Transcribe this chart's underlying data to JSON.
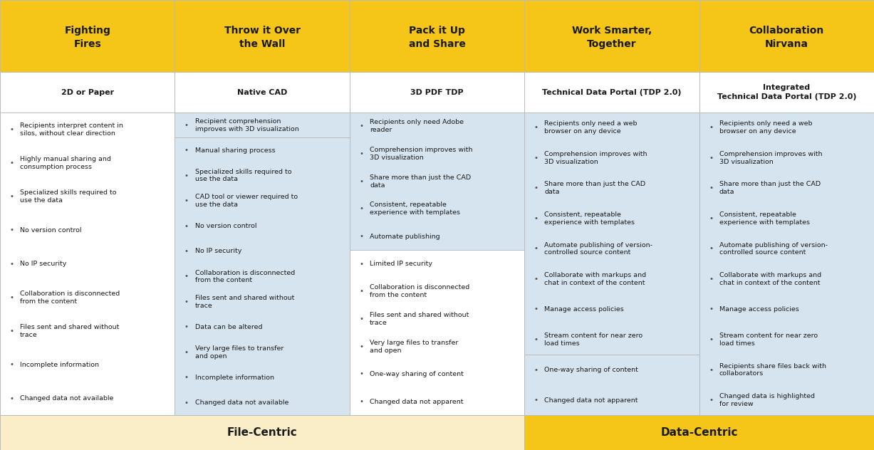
{
  "header_bg": "#F5C518",
  "header_text_color": "#1a1a1a",
  "body_bg_white": "#ffffff",
  "body_bg_light": "#d6e4f0",
  "subheader_bg": "#ffffff",
  "footer_file_centric_bg": "#faeec8",
  "footer_data_centric_bg": "#F5C518",
  "footer_text_color": "#1a1a1a",
  "border_color": "#bbbbbb",
  "columns": [
    {
      "header_title": "Fighting\nFires",
      "col_subheader": "2D or Paper",
      "bullets": [
        "Recipients interpret content in\nsilos, without clear direction",
        "Highly manual sharing and\nconsumption process",
        "Specialized skills required to\nuse the data",
        "No version control",
        "No IP security",
        "Collaboration is disconnected\nfrom the content",
        "Files sent and shared without\ntrace",
        "Incomplete information",
        "Changed data not available"
      ],
      "highlight_top": false,
      "body_bg": "#ffffff"
    },
    {
      "header_title": "Throw it Over\nthe Wall",
      "col_subheader": "Native CAD",
      "bullets": [
        "Recipient comprehension\nimproves with 3D visualization",
        "Manual sharing process",
        "Specialized skills required to\nuse the data",
        "CAD tool or viewer required to\nuse the data",
        "No version control",
        "No IP security",
        "Collaboration is disconnected\nfrom the content",
        "Files sent and shared without\ntrace",
        "Data can be altered",
        "Very large files to transfer\nand open",
        "Incomplete information",
        "Changed data not available"
      ],
      "highlight_top": true,
      "highlight_count": 1,
      "body_bg": "#d6e4f0"
    },
    {
      "header_title": "Pack it Up\nand Share",
      "col_subheader": "3D PDF TDP",
      "bullets": [
        "Recipients only need Adobe\nreader",
        "Comprehension improves with\n3D visualization",
        "Share more than just the CAD\ndata",
        "Consistent, repeatable\nexperience with templates",
        "Automate publishing",
        "Limited IP security",
        "Collaboration is disconnected\nfrom the content",
        "Files sent and shared without\ntrace",
        "Very large files to transfer\nand open",
        "One-way sharing of content",
        "Changed data not apparent"
      ],
      "highlight_top": true,
      "highlight_count": 5,
      "body_bg": "#ffffff"
    },
    {
      "header_title": "Work Smarter,\nTogether",
      "col_subheader": "Technical Data Portal (TDP 2.0)",
      "bullets": [
        "Recipients only need a web\nbrowser on any device",
        "Comprehension improves with\n3D visualization",
        "Share more than just the CAD\ndata",
        "Consistent, repeatable\nexperience with templates",
        "Automate publishing of version-\ncontrolled source content",
        "Collaborate with markups and\nchat in context of the content",
        "Manage access policies",
        "Stream content for near zero\nload times",
        "One-way sharing of content",
        "Changed data not apparent"
      ],
      "highlight_top": true,
      "highlight_count": 8,
      "body_bg": "#d6e4f0"
    },
    {
      "header_title": "Collaboration\nNirvana",
      "col_subheader": "Integrated\nTechnical Data Portal (TDP 2.0)",
      "bullets": [
        "Recipients only need a web\nbrowser on any device",
        "Comprehension improves with\n3D visualization",
        "Share more than just the CAD\ndata",
        "Consistent, repeatable\nexperience with templates",
        "Automate publishing of version-\ncontrolled source content",
        "Collaborate with markups and\nchat in context of the content",
        "Manage access policies",
        "Stream content for near zero\nload times",
        "Recipients share files back with\ncollaborators",
        "Changed data is highlighted\nfor review"
      ],
      "highlight_top": true,
      "highlight_count": 10,
      "body_bg": "#d6e4f0"
    }
  ],
  "footer_file_centric_label": "File-Centric",
  "footer_data_centric_label": "Data-Centric",
  "n_file_centric_cols": 3
}
